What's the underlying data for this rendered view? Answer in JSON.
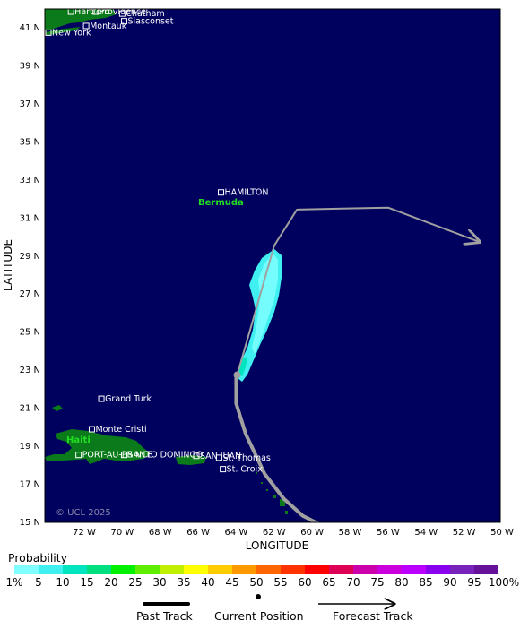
{
  "map": {
    "ocean_color": "#00005e",
    "land_color": "#0a7a1a",
    "lon_ticks": [
      "72 W",
      "70 W",
      "68 W",
      "66 W",
      "64 W",
      "62 W",
      "60 W",
      "58 W",
      "56 W",
      "54 W",
      "52 W",
      "50 W"
    ],
    "lat_ticks": [
      "41 N",
      "39 N",
      "37 N",
      "35 N",
      "33 N",
      "31 N",
      "29 N",
      "27 N",
      "25 N",
      "23 N",
      "21 N",
      "19 N",
      "17 N",
      "15 N"
    ],
    "xlabel": "LONGITUDE",
    "ylabel": "LATITUDE",
    "copyright": "© UCL 2025",
    "places": [
      {
        "name": "Siasconset",
        "lon": -69.9,
        "lat": 41.3
      },
      {
        "name": "Providence",
        "lon": -71.4,
        "lat": 41.8
      },
      {
        "name": "Montauk",
        "lon": -71.9,
        "lat": 41.05
      },
      {
        "name": "Chatham",
        "lon": -70.0,
        "lat": 41.7
      },
      {
        "name": "Hartford",
        "lon": -72.7,
        "lat": 41.8
      },
      {
        "name": "New York",
        "lon": -74.0,
        "lat": 40.7
      },
      {
        "name": "HAMILTON",
        "lon": -64.8,
        "lat": 32.3
      },
      {
        "name": "Grand Turk",
        "lon": -71.1,
        "lat": 21.45
      },
      {
        "name": "Monte Cristi",
        "lon": -71.6,
        "lat": 19.85
      },
      {
        "name": "SANTO DOMINGO",
        "lon": -69.9,
        "lat": 18.5
      },
      {
        "name": "PORT-AU-PRINCE",
        "lon": -72.3,
        "lat": 18.5
      },
      {
        "name": "SAN JUAN",
        "lon": -66.1,
        "lat": 18.45
      },
      {
        "name": "St. Thomas",
        "lon": -64.9,
        "lat": 18.35
      },
      {
        "name": "St. Croix",
        "lon": -64.7,
        "lat": 17.75
      }
    ],
    "highlight_labels": [
      "Bermuda",
      "Haiti"
    ]
  },
  "storm": {
    "past_track": [
      [
        -57.5,
        13.8
      ],
      [
        -60.5,
        15.3
      ],
      [
        -61.5,
        16.2
      ],
      [
        -62.5,
        17.5
      ],
      [
        -63.5,
        19.6
      ],
      [
        -64.0,
        21.2
      ],
      [
        -64.0,
        22.7
      ]
    ],
    "current_position": [
      -63.95,
      22.7
    ],
    "forecast_track": [
      [
        -63.95,
        22.7
      ],
      [
        -63.0,
        26.0
      ],
      [
        -62.0,
        29.5
      ],
      [
        -60.8,
        31.4
      ],
      [
        -56.0,
        31.5
      ],
      [
        -51.2,
        29.7
      ]
    ]
  },
  "legend": {
    "title": "Probability",
    "labels": [
      "1%",
      "5",
      "10",
      "15",
      "20",
      "25",
      "30",
      "35",
      "40",
      "45",
      "50",
      "55",
      "60",
      "65",
      "70",
      "75",
      "80",
      "85",
      "90",
      "95",
      "100%"
    ],
    "colors": [
      "#7fffff",
      "#40f0f0",
      "#00e5c0",
      "#00e080",
      "#00f000",
      "#60ee00",
      "#c0f000",
      "#ffff00",
      "#ffcc00",
      "#ff9900",
      "#ff6600",
      "#ff3300",
      "#ff0000",
      "#dd0055",
      "#cc00aa",
      "#cc00dd",
      "#bb00ff",
      "#8800ee",
      "#7722bb",
      "#661199"
    ],
    "key": {
      "past": "Past Track",
      "current": "Current Position",
      "forecast": "Forecast Track"
    }
  }
}
